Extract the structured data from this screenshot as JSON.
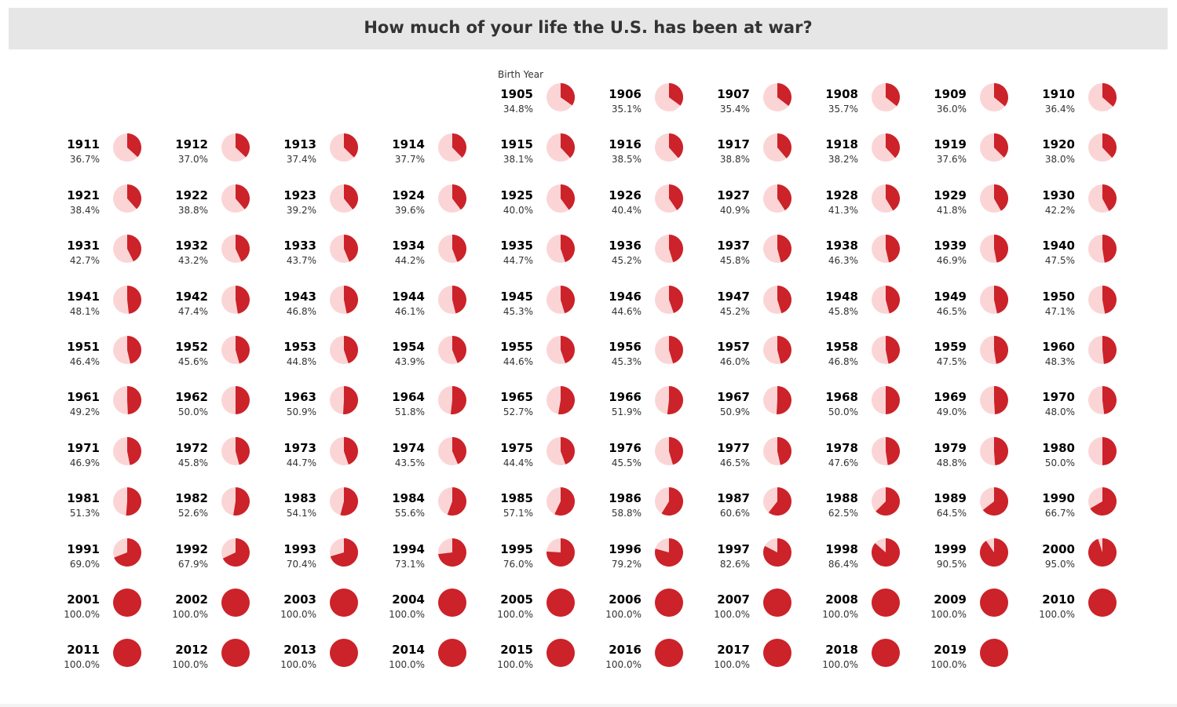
{
  "title": "How much of your life the U.S. has been at war?",
  "column_header": "Birth Year",
  "colors": {
    "war": "#cc2229",
    "peace": "#fbd5d6",
    "title_bar": "#e6e6e6"
  },
  "chart_data": {
    "type": "pie",
    "layout": "small-multiples grid, 10 per row",
    "title": "How much of your life the U.S. has been at war?",
    "category_label": "Birth Year",
    "series": [
      {
        "year": "1905",
        "label": "34.8%",
        "value": 34.8
      },
      {
        "year": "1906",
        "label": "35.1%",
        "value": 35.1
      },
      {
        "year": "1907",
        "label": "35.4%",
        "value": 35.4
      },
      {
        "year": "1908",
        "label": "35.7%",
        "value": 35.7
      },
      {
        "year": "1909",
        "label": "36.0%",
        "value": 36.0
      },
      {
        "year": "1910",
        "label": "36.4%",
        "value": 36.4
      },
      {
        "year": "1911",
        "label": "36.7%",
        "value": 36.7
      },
      {
        "year": "1912",
        "label": "37.0%",
        "value": 37.0
      },
      {
        "year": "1913",
        "label": "37.4%",
        "value": 37.4
      },
      {
        "year": "1914",
        "label": "37.7%",
        "value": 37.7
      },
      {
        "year": "1915",
        "label": "38.1%",
        "value": 38.1
      },
      {
        "year": "1916",
        "label": "38.5%",
        "value": 38.5
      },
      {
        "year": "1917",
        "label": "38.8%",
        "value": 38.8
      },
      {
        "year": "1918",
        "label": "38.2%",
        "value": 38.2
      },
      {
        "year": "1919",
        "label": "37.6%",
        "value": 37.6
      },
      {
        "year": "1920",
        "label": "38.0%",
        "value": 38.0
      },
      {
        "year": "1921",
        "label": "38.4%",
        "value": 38.4
      },
      {
        "year": "1922",
        "label": "38.8%",
        "value": 38.8
      },
      {
        "year": "1923",
        "label": "39.2%",
        "value": 39.2
      },
      {
        "year": "1924",
        "label": "39.6%",
        "value": 39.6
      },
      {
        "year": "1925",
        "label": "40.0%",
        "value": 40.0
      },
      {
        "year": "1926",
        "label": "40.4%",
        "value": 40.4
      },
      {
        "year": "1927",
        "label": "40.9%",
        "value": 40.9
      },
      {
        "year": "1928",
        "label": "41.3%",
        "value": 41.3
      },
      {
        "year": "1929",
        "label": "41.8%",
        "value": 41.8
      },
      {
        "year": "1930",
        "label": "42.2%",
        "value": 42.2
      },
      {
        "year": "1931",
        "label": "42.7%",
        "value": 42.7
      },
      {
        "year": "1932",
        "label": "43.2%",
        "value": 43.2
      },
      {
        "year": "1933",
        "label": "43.7%",
        "value": 43.7
      },
      {
        "year": "1934",
        "label": "44.2%",
        "value": 44.2
      },
      {
        "year": "1935",
        "label": "44.7%",
        "value": 44.7
      },
      {
        "year": "1936",
        "label": "45.2%",
        "value": 45.2
      },
      {
        "year": "1937",
        "label": "45.8%",
        "value": 45.8
      },
      {
        "year": "1938",
        "label": "46.3%",
        "value": 46.3
      },
      {
        "year": "1939",
        "label": "46.9%",
        "value": 46.9
      },
      {
        "year": "1940",
        "label": "47.5%",
        "value": 47.5
      },
      {
        "year": "1941",
        "label": "48.1%",
        "value": 48.1
      },
      {
        "year": "1942",
        "label": "47.4%",
        "value": 47.4
      },
      {
        "year": "1943",
        "label": "46.8%",
        "value": 46.8
      },
      {
        "year": "1944",
        "label": "46.1%",
        "value": 46.1
      },
      {
        "year": "1945",
        "label": "45.3%",
        "value": 45.3
      },
      {
        "year": "1946",
        "label": "44.6%",
        "value": 44.6
      },
      {
        "year": "1947",
        "label": "45.2%",
        "value": 45.2
      },
      {
        "year": "1948",
        "label": "45.8%",
        "value": 45.8
      },
      {
        "year": "1949",
        "label": "46.5%",
        "value": 46.5
      },
      {
        "year": "1950",
        "label": "47.1%",
        "value": 47.1
      },
      {
        "year": "1951",
        "label": "46.4%",
        "value": 46.4
      },
      {
        "year": "1952",
        "label": "45.6%",
        "value": 45.6
      },
      {
        "year": "1953",
        "label": "44.8%",
        "value": 44.8
      },
      {
        "year": "1954",
        "label": "43.9%",
        "value": 43.9
      },
      {
        "year": "1955",
        "label": "44.6%",
        "value": 44.6
      },
      {
        "year": "1956",
        "label": "45.3%",
        "value": 45.3
      },
      {
        "year": "1957",
        "label": "46.0%",
        "value": 46.0
      },
      {
        "year": "1958",
        "label": "46.8%",
        "value": 46.8
      },
      {
        "year": "1959",
        "label": "47.5%",
        "value": 47.5
      },
      {
        "year": "1960",
        "label": "48.3%",
        "value": 48.3
      },
      {
        "year": "1961",
        "label": "49.2%",
        "value": 49.2
      },
      {
        "year": "1962",
        "label": "50.0%",
        "value": 50.0
      },
      {
        "year": "1963",
        "label": "50.9%",
        "value": 50.9
      },
      {
        "year": "1964",
        "label": "51.8%",
        "value": 51.8
      },
      {
        "year": "1965",
        "label": "52.7%",
        "value": 52.7
      },
      {
        "year": "1966",
        "label": "51.9%",
        "value": 51.9
      },
      {
        "year": "1967",
        "label": "50.9%",
        "value": 50.9
      },
      {
        "year": "1968",
        "label": "50.0%",
        "value": 50.0
      },
      {
        "year": "1969",
        "label": "49.0%",
        "value": 49.0
      },
      {
        "year": "1970",
        "label": "48.0%",
        "value": 48.0
      },
      {
        "year": "1971",
        "label": "46.9%",
        "value": 46.9
      },
      {
        "year": "1972",
        "label": "45.8%",
        "value": 45.8
      },
      {
        "year": "1973",
        "label": "44.7%",
        "value": 44.7
      },
      {
        "year": "1974",
        "label": "43.5%",
        "value": 43.5
      },
      {
        "year": "1975",
        "label": "44.4%",
        "value": 44.4
      },
      {
        "year": "1976",
        "label": "45.5%",
        "value": 45.5
      },
      {
        "year": "1977",
        "label": "46.5%",
        "value": 46.5
      },
      {
        "year": "1978",
        "label": "47.6%",
        "value": 47.6
      },
      {
        "year": "1979",
        "label": "48.8%",
        "value": 48.8
      },
      {
        "year": "1980",
        "label": "50.0%",
        "value": 50.0
      },
      {
        "year": "1981",
        "label": "51.3%",
        "value": 51.3
      },
      {
        "year": "1982",
        "label": "52.6%",
        "value": 52.6
      },
      {
        "year": "1983",
        "label": "54.1%",
        "value": 54.1
      },
      {
        "year": "1984",
        "label": "55.6%",
        "value": 55.6
      },
      {
        "year": "1985",
        "label": "57.1%",
        "value": 57.1
      },
      {
        "year": "1986",
        "label": "58.8%",
        "value": 58.8
      },
      {
        "year": "1987",
        "label": "60.6%",
        "value": 60.6
      },
      {
        "year": "1988",
        "label": "62.5%",
        "value": 62.5
      },
      {
        "year": "1989",
        "label": "64.5%",
        "value": 64.5
      },
      {
        "year": "1990",
        "label": "66.7%",
        "value": 66.7
      },
      {
        "year": "1991",
        "label": "69.0%",
        "value": 69.0
      },
      {
        "year": "1992",
        "label": "67.9%",
        "value": 67.9
      },
      {
        "year": "1993",
        "label": "70.4%",
        "value": 70.4
      },
      {
        "year": "1994",
        "label": "73.1%",
        "value": 73.1
      },
      {
        "year": "1995",
        "label": "76.0%",
        "value": 76.0
      },
      {
        "year": "1996",
        "label": "79.2%",
        "value": 79.2
      },
      {
        "year": "1997",
        "label": "82.6%",
        "value": 82.6
      },
      {
        "year": "1998",
        "label": "86.4%",
        "value": 86.4
      },
      {
        "year": "1999",
        "label": "90.5%",
        "value": 90.5
      },
      {
        "year": "2000",
        "label": "95.0%",
        "value": 95.0
      },
      {
        "year": "2001",
        "label": "100.0%",
        "value": 100.0
      },
      {
        "year": "2002",
        "label": "100.0%",
        "value": 100.0
      },
      {
        "year": "2003",
        "label": "100.0%",
        "value": 100.0
      },
      {
        "year": "2004",
        "label": "100.0%",
        "value": 100.0
      },
      {
        "year": "2005",
        "label": "100.0%",
        "value": 100.0
      },
      {
        "year": "2006",
        "label": "100.0%",
        "value": 100.0
      },
      {
        "year": "2007",
        "label": "100.0%",
        "value": 100.0
      },
      {
        "year": "2008",
        "label": "100.0%",
        "value": 100.0
      },
      {
        "year": "2009",
        "label": "100.0%",
        "value": 100.0
      },
      {
        "year": "2010",
        "label": "100.0%",
        "value": 100.0
      },
      {
        "year": "2011",
        "label": "100.0%",
        "value": 100.0
      },
      {
        "year": "2012",
        "label": "100.0%",
        "value": 100.0
      },
      {
        "year": "2013",
        "label": "100.0%",
        "value": 100.0
      },
      {
        "year": "2014",
        "label": "100.0%",
        "value": 100.0
      },
      {
        "year": "2015",
        "label": "100.0%",
        "value": 100.0
      },
      {
        "year": "2016",
        "label": "100.0%",
        "value": 100.0
      },
      {
        "year": "2017",
        "label": "100.0%",
        "value": 100.0
      },
      {
        "year": "2018",
        "label": "100.0%",
        "value": 100.0
      },
      {
        "year": "2019",
        "label": "100.0%",
        "value": 100.0
      }
    ]
  }
}
